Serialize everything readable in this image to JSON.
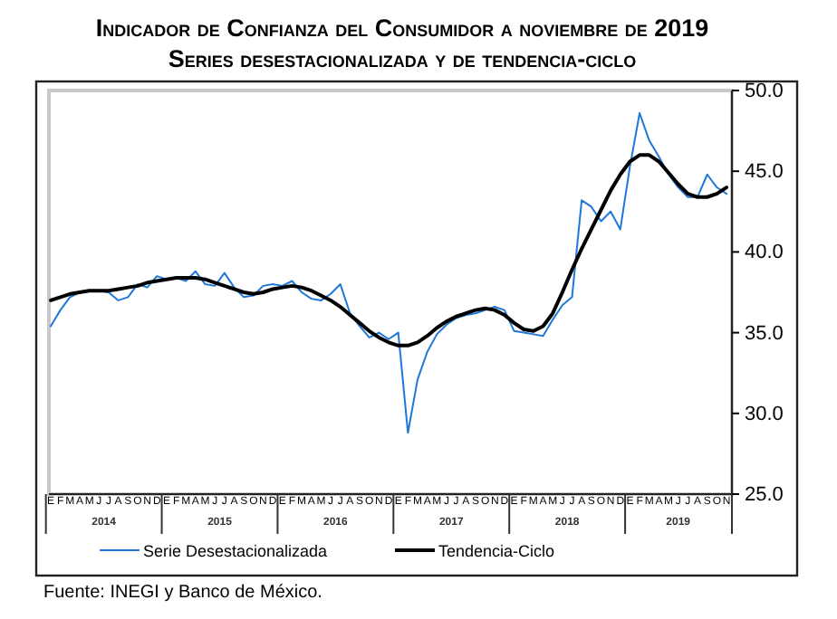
{
  "chart_data": {
    "type": "line",
    "title": "Indicador de Confianza del Consumidor a noviembre de 2019",
    "subtitle": "Series desestacionalizada y de tendencia-ciclo",
    "categories": [
      "E",
      "F",
      "M",
      "A",
      "M",
      "J",
      "J",
      "A",
      "S",
      "O",
      "N",
      "D",
      "E",
      "F",
      "M",
      "A",
      "M",
      "J",
      "J",
      "A",
      "S",
      "O",
      "N",
      "D",
      "E",
      "F",
      "M",
      "A",
      "M",
      "J",
      "J",
      "A",
      "S",
      "O",
      "N",
      "D",
      "E",
      "F",
      "M",
      "A",
      "M",
      "J",
      "J",
      "A",
      "S",
      "O",
      "N",
      "D",
      "E",
      "F",
      "M",
      "A",
      "M",
      "J",
      "J",
      "A",
      "S",
      "O",
      "N",
      "D",
      "E",
      "F",
      "M",
      "A",
      "M",
      "J",
      "J",
      "A",
      "S",
      "O",
      "N"
    ],
    "series": [
      {
        "name": "Serie Desestacionalizada",
        "color": "#1f78d8",
        "values": [
          35.4,
          36.4,
          37.2,
          37.5,
          37.6,
          37.6,
          37.5,
          37.0,
          37.2,
          38.0,
          37.8,
          38.5,
          38.3,
          38.4,
          38.2,
          38.8,
          38.0,
          37.9,
          38.7,
          37.8,
          37.2,
          37.3,
          37.9,
          38.0,
          37.9,
          38.2,
          37.5,
          37.1,
          37.0,
          37.4,
          38.0,
          36.2,
          35.4,
          34.7,
          35.0,
          34.6,
          35.0,
          28.8,
          32.1,
          33.8,
          34.9,
          35.5,
          35.9,
          36.1,
          36.2,
          36.4,
          36.6,
          36.4,
          35.1,
          35.0,
          34.9,
          34.8,
          35.8,
          36.7,
          37.2,
          43.2,
          42.8,
          41.9,
          42.5,
          41.4,
          45.3,
          48.6,
          46.9,
          45.9,
          44.8,
          44.0,
          43.4,
          43.4,
          44.8,
          44.0,
          43.6
        ]
      },
      {
        "name": "Tendencia-Ciclo",
        "color": "#000000",
        "values": [
          37.0,
          37.2,
          37.4,
          37.5,
          37.6,
          37.6,
          37.6,
          37.7,
          37.8,
          37.9,
          38.1,
          38.2,
          38.3,
          38.4,
          38.4,
          38.4,
          38.3,
          38.1,
          37.9,
          37.7,
          37.5,
          37.4,
          37.5,
          37.7,
          37.8,
          37.9,
          37.8,
          37.6,
          37.3,
          37.0,
          36.6,
          36.1,
          35.6,
          35.1,
          34.7,
          34.4,
          34.2,
          34.2,
          34.4,
          34.8,
          35.3,
          35.7,
          36.0,
          36.2,
          36.4,
          36.5,
          36.4,
          36.1,
          35.6,
          35.2,
          35.1,
          35.4,
          36.2,
          37.5,
          38.9,
          40.2,
          41.4,
          42.6,
          43.8,
          44.8,
          45.6,
          46.0,
          46.0,
          45.6,
          44.9,
          44.2,
          43.6,
          43.4,
          43.4,
          43.6,
          44.0
        ]
      }
    ],
    "ylim": [
      25,
      50
    ],
    "yticks": [
      {
        "value": 25,
        "label": "25.0"
      },
      {
        "value": 30,
        "label": "30.0"
      },
      {
        "value": 35,
        "label": "35.0"
      },
      {
        "value": 40,
        "label": "40.0"
      },
      {
        "value": 45,
        "label": "45.0"
      },
      {
        "value": 50,
        "label": "50.0"
      }
    ],
    "legend": "bottom",
    "grid": false,
    "annotations": [
      "2014",
      "2015",
      "2016",
      "2017",
      "2018",
      "2019",
      "Fuente: INEGI y Banco de México."
    ]
  }
}
